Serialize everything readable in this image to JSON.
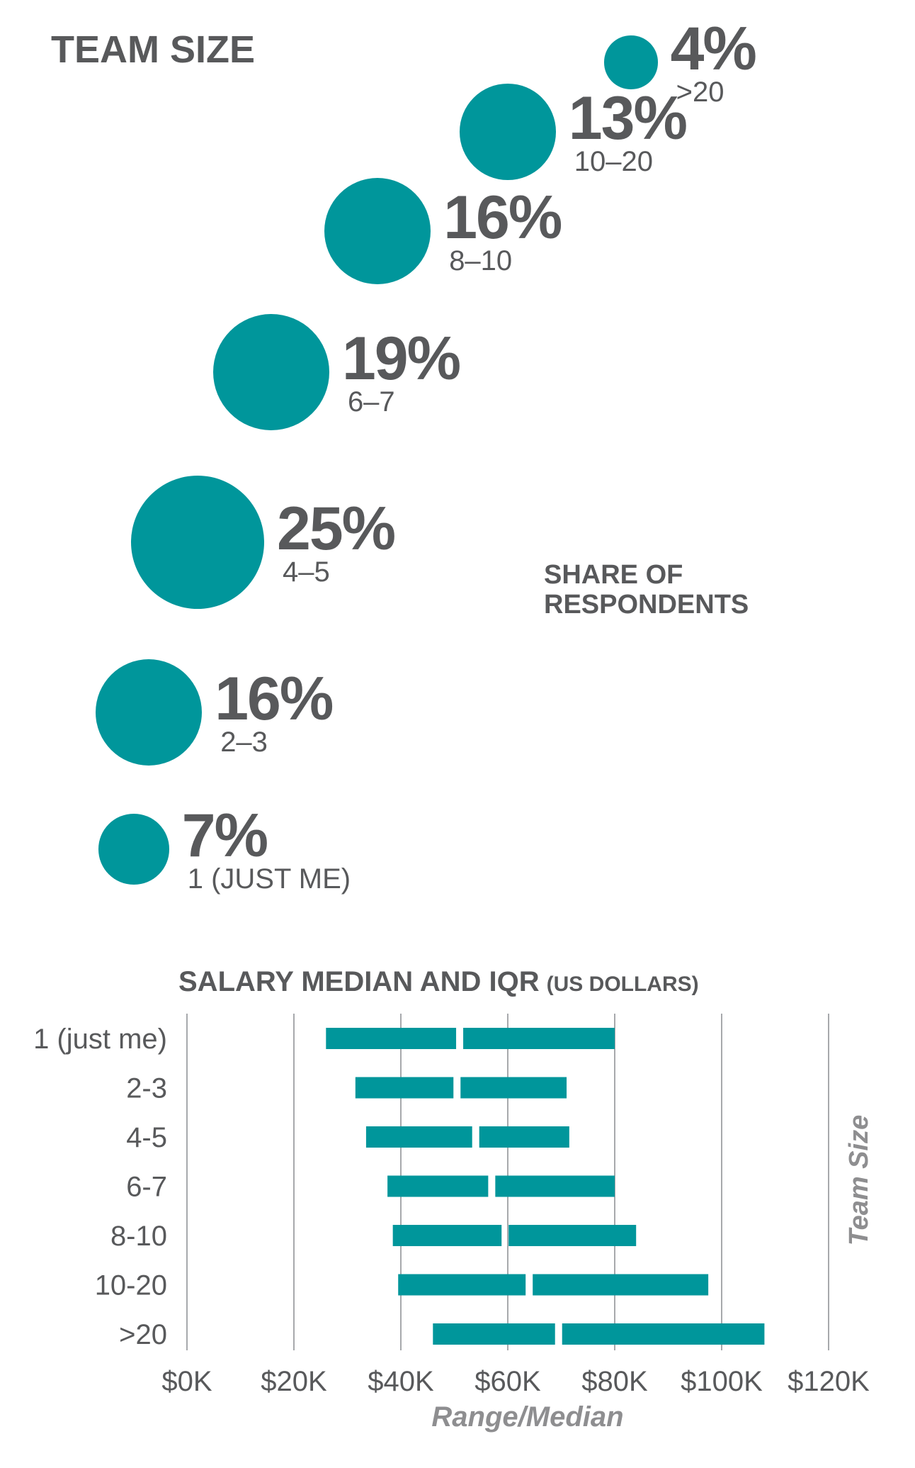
{
  "accent_color": "#00969b",
  "text_color": "#58595b",
  "chart_data": [
    {
      "type": "bubble",
      "title": "TEAM SIZE",
      "subtitle_line1": "SHARE OF",
      "subtitle_line2": "RESPONDENTS",
      "points": [
        {
          "category": ">20",
          "value": 4,
          "label": "4%"
        },
        {
          "category": "10–20",
          "value": 13,
          "label": "13%"
        },
        {
          "category": "8–10",
          "value": 16,
          "label": "16%"
        },
        {
          "category": "6–7",
          "value": 19,
          "label": "19%"
        },
        {
          "category": "4–5",
          "value": 25,
          "label": "25%"
        },
        {
          "category": "2–3",
          "value": 16,
          "label": "16%"
        },
        {
          "category": "1 (JUST ME)",
          "value": 7,
          "label": "7%"
        }
      ]
    },
    {
      "type": "bar",
      "orientation": "horizontal range (IQR) split at median",
      "title": "SALARY MEDIAN AND IQR",
      "title_suffix": "(US DOLLARS)",
      "xlabel": "Range/Median",
      "ylabel": "Team Size",
      "xlim": [
        0,
        120000
      ],
      "xticks": [
        0,
        20000,
        40000,
        60000,
        80000,
        100000,
        120000
      ],
      "xtick_labels": [
        "$0K",
        "$20K",
        "$40K",
        "$60K",
        "$80K",
        "$100K",
        "$120K"
      ],
      "grid": true,
      "categories": [
        "1 (just me)",
        "2-3",
        "4-5",
        "6-7",
        "8-10",
        "10-20",
        ">20"
      ],
      "series": [
        {
          "q1": [
            26000,
            31500,
            33500,
            37500,
            38500,
            39500,
            46000
          ]
        },
        {
          "median": [
            51000,
            50500,
            54000,
            57000,
            59500,
            64000,
            69500
          ]
        },
        {
          "q3": [
            80000,
            71000,
            71500,
            80000,
            84000,
            97500,
            108000
          ]
        }
      ]
    }
  ]
}
